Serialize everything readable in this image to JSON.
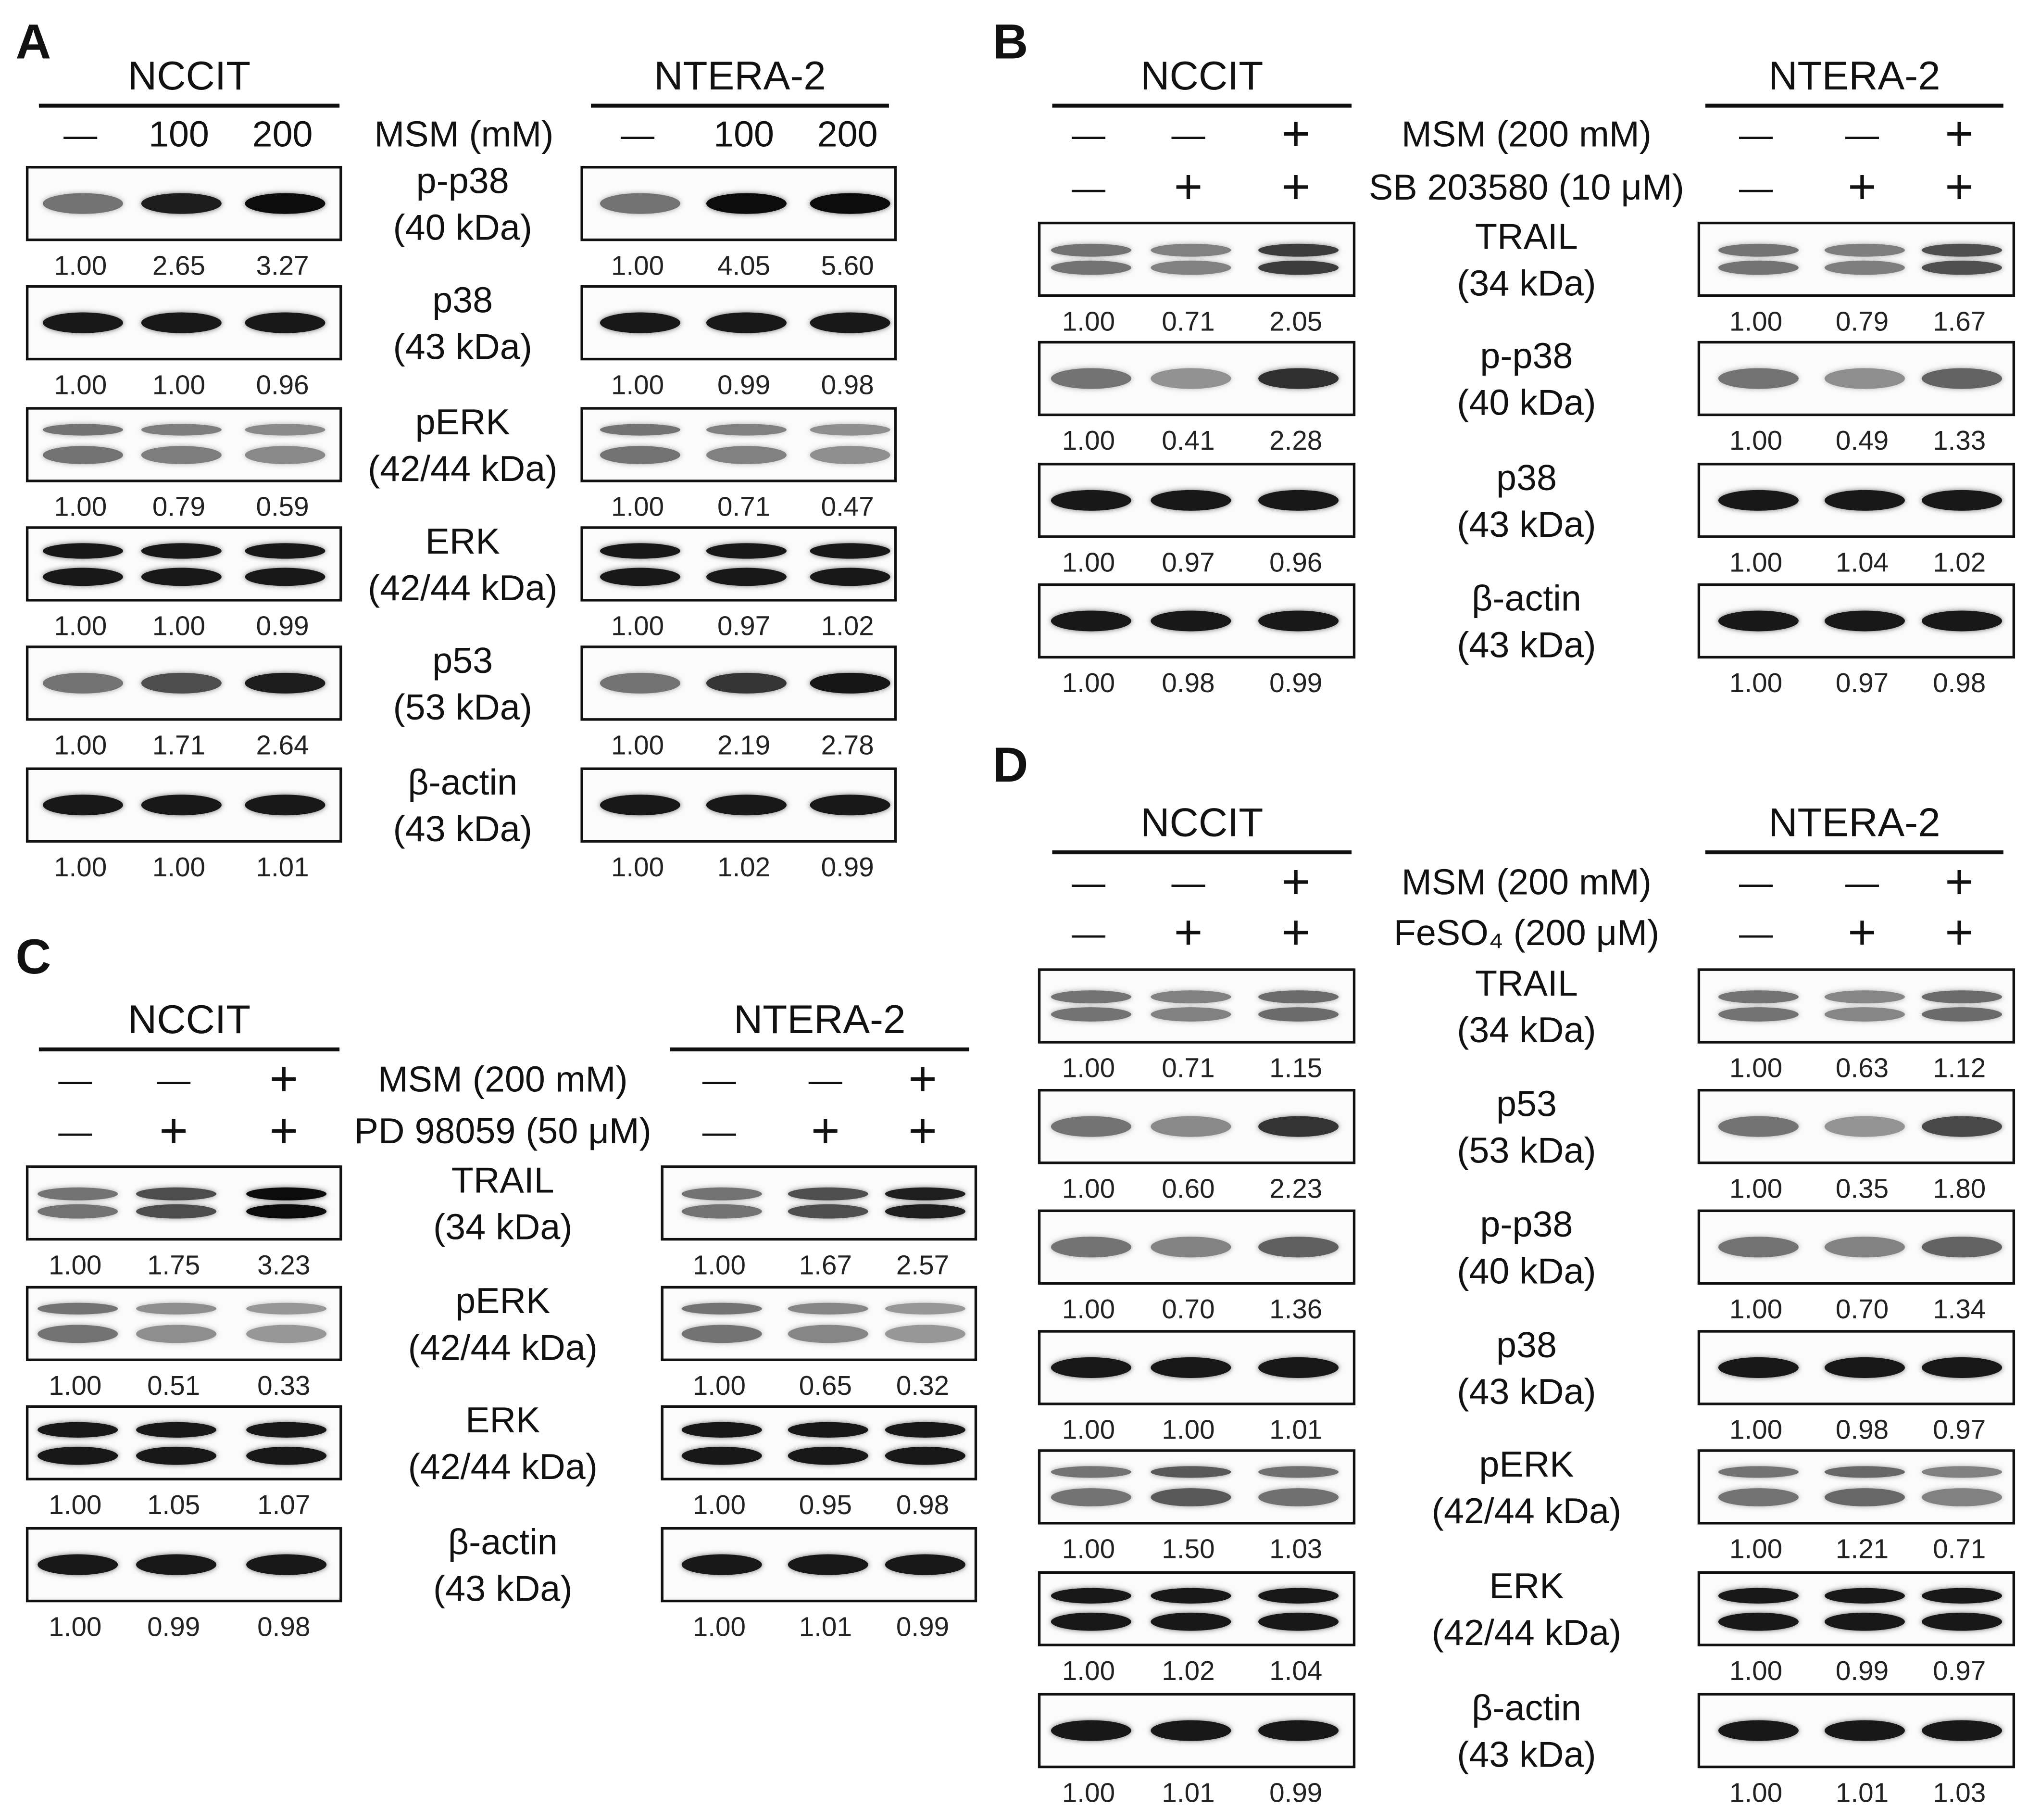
{
  "panels": [
    {
      "letter": "A",
      "cells": [
        "NCCIT",
        "NTERA-2"
      ],
      "conditions": [
        {
          "label": "MSM (mM)",
          "values": [
            [
              "—",
              "100",
              "200"
            ],
            [
              "—",
              "100",
              "200"
            ]
          ]
        }
      ],
      "blots": [
        {
          "name": "p-p38",
          "kda": "(40 kDa)",
          "quant": [
            [
              "1.00",
              "2.65",
              "3.27"
            ],
            [
              "1.00",
              "4.05",
              "5.60"
            ]
          ]
        },
        {
          "name": "p38",
          "kda": "(43 kDa)",
          "quant": [
            [
              "1.00",
              "1.00",
              "0.96"
            ],
            [
              "1.00",
              "0.99",
              "0.98"
            ]
          ]
        },
        {
          "name": "pERK",
          "kda": "(42/44 kDa)",
          "quant": [
            [
              "1.00",
              "0.79",
              "0.59"
            ],
            [
              "1.00",
              "0.71",
              "0.47"
            ]
          ]
        },
        {
          "name": "ERK",
          "kda": "(42/44 kDa)",
          "quant": [
            [
              "1.00",
              "1.00",
              "0.99"
            ],
            [
              "1.00",
              "0.97",
              "1.02"
            ]
          ]
        },
        {
          "name": "p53",
          "kda": "(53 kDa)",
          "quant": [
            [
              "1.00",
              "1.71",
              "2.64"
            ],
            [
              "1.00",
              "2.19",
              "2.78"
            ]
          ]
        },
        {
          "name": "β-actin",
          "kda": "(43 kDa)",
          "quant": [
            [
              "1.00",
              "1.00",
              "1.01"
            ],
            [
              "1.00",
              "1.02",
              "0.99"
            ]
          ]
        }
      ]
    },
    {
      "letter": "B",
      "cells": [
        "NCCIT",
        "NTERA-2"
      ],
      "conditions": [
        {
          "label": "MSM  (200 mM)",
          "values": [
            [
              "—",
              "—",
              "+"
            ],
            [
              "—",
              "—",
              "+"
            ]
          ]
        },
        {
          "label": "SB 203580 (10 μM)",
          "values": [
            [
              "—",
              "+",
              "+"
            ],
            [
              "—",
              "+",
              "+"
            ]
          ]
        }
      ],
      "blots": [
        {
          "name": "TRAIL",
          "kda": "(34 kDa)",
          "quant": [
            [
              "1.00",
              "0.71",
              "2.05"
            ],
            [
              "1.00",
              "0.79",
              "1.67"
            ]
          ]
        },
        {
          "name": "p-p38",
          "kda": "(40 kDa)",
          "quant": [
            [
              "1.00",
              "0.41",
              "2.28"
            ],
            [
              "1.00",
              "0.49",
              "1.33"
            ]
          ]
        },
        {
          "name": "p38",
          "kda": "(43 kDa)",
          "quant": [
            [
              "1.00",
              "0.97",
              "0.96"
            ],
            [
              "1.00",
              "1.04",
              "1.02"
            ]
          ]
        },
        {
          "name": "β-actin",
          "kda": "(43 kDa)",
          "quant": [
            [
              "1.00",
              "0.98",
              "0.99"
            ],
            [
              "1.00",
              "0.97",
              "0.98"
            ]
          ]
        }
      ]
    },
    {
      "letter": "C",
      "cells": [
        "NCCIT",
        "NTERA-2"
      ],
      "conditions": [
        {
          "label": "MSM  (200 mM)",
          "values": [
            [
              "—",
              "—",
              "+"
            ],
            [
              "—",
              "—",
              "+"
            ]
          ]
        },
        {
          "label": "PD 98059 (50 μM)",
          "values": [
            [
              "—",
              "+",
              "+"
            ],
            [
              "—",
              "+",
              "+"
            ]
          ]
        }
      ],
      "blots": [
        {
          "name": "TRAIL",
          "kda": "(34 kDa)",
          "quant": [
            [
              "1.00",
              "1.75",
              "3.23"
            ],
            [
              "1.00",
              "1.67",
              "2.57"
            ]
          ]
        },
        {
          "name": "pERK",
          "kda": "(42/44 kDa)",
          "quant": [
            [
              "1.00",
              "0.51",
              "0.33"
            ],
            [
              "1.00",
              "0.65",
              "0.32"
            ]
          ]
        },
        {
          "name": "ERK",
          "kda": "(42/44 kDa)",
          "quant": [
            [
              "1.00",
              "1.05",
              "1.07"
            ],
            [
              "1.00",
              "0.95",
              "0.98"
            ]
          ]
        },
        {
          "name": "β-actin",
          "kda": "(43 kDa)",
          "quant": [
            [
              "1.00",
              "0.99",
              "0.98"
            ],
            [
              "1.00",
              "1.01",
              "0.99"
            ]
          ]
        }
      ]
    },
    {
      "letter": "D",
      "cells": [
        "NCCIT",
        "NTERA-2"
      ],
      "conditions": [
        {
          "label": "MSM  (200 mM)",
          "values": [
            [
              "—",
              "—",
              "+"
            ],
            [
              "—",
              "—",
              "+"
            ]
          ]
        },
        {
          "label": "FeSO₄ (200 μM)",
          "values": [
            [
              "—",
              "+",
              "+"
            ],
            [
              "—",
              "+",
              "+"
            ]
          ]
        }
      ],
      "blots": [
        {
          "name": "TRAIL",
          "kda": "(34 kDa)",
          "quant": [
            [
              "1.00",
              "0.71",
              "1.15"
            ],
            [
              "1.00",
              "0.63",
              "1.12"
            ]
          ]
        },
        {
          "name": "p53",
          "kda": "(53 kDa)",
          "quant": [
            [
              "1.00",
              "0.60",
              "2.23"
            ],
            [
              "1.00",
              "0.35",
              "1.80"
            ]
          ]
        },
        {
          "name": "p-p38",
          "kda": "(40 kDa)",
          "quant": [
            [
              "1.00",
              "0.70",
              "1.36"
            ],
            [
              "1.00",
              "0.70",
              "1.34"
            ]
          ]
        },
        {
          "name": "p38",
          "kda": "(43 kDa)",
          "quant": [
            [
              "1.00",
              "1.00",
              "1.01"
            ],
            [
              "1.00",
              "0.98",
              "0.97"
            ]
          ]
        },
        {
          "name": "pERK",
          "kda": "(42/44 kDa)",
          "quant": [
            [
              "1.00",
              "1.50",
              "1.03"
            ],
            [
              "1.00",
              "1.21",
              "0.71"
            ]
          ]
        },
        {
          "name": "ERK",
          "kda": "(42/44 kDa)",
          "quant": [
            [
              "1.00",
              "1.02",
              "1.04"
            ],
            [
              "1.00",
              "0.99",
              "0.97"
            ]
          ]
        },
        {
          "name": "β-actin",
          "kda": "(43 kDa)",
          "quant": [
            [
              "1.00",
              "1.01",
              "0.99"
            ],
            [
              "1.00",
              "1.01",
              "1.03"
            ]
          ]
        }
      ]
    }
  ]
}
